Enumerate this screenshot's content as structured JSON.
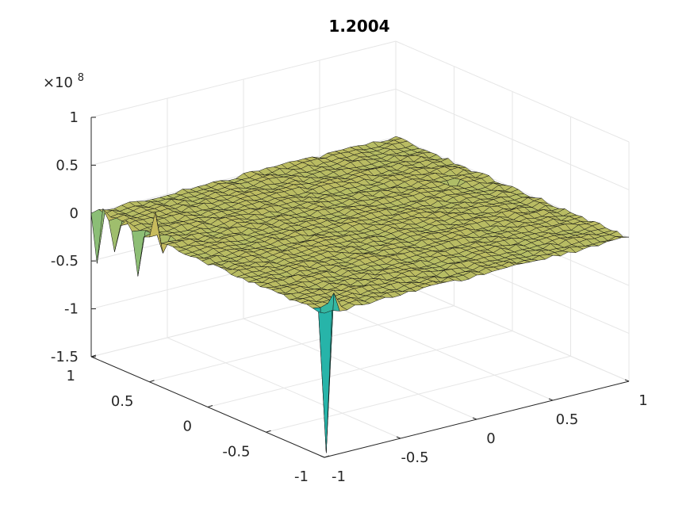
{
  "chart_data": {
    "type": "surface",
    "title": "1.2004",
    "colormap": "parula",
    "x_ticks": [
      "-1",
      "-0.5",
      "0",
      "0.5",
      "1"
    ],
    "y_ticks": [
      "-1",
      "-0.5",
      "0",
      "0.5",
      "1"
    ],
    "z_ticks": [
      "-1.5",
      "-1",
      "-0.5",
      "0",
      "0.5",
      "1"
    ],
    "z_exponent_label": "×10",
    "z_exponent_power": "8",
    "xlim": [
      -1,
      1
    ],
    "ylim": [
      -1,
      1
    ],
    "zlim": [
      -150000000.0,
      100000000.0
    ],
    "grid": true,
    "surface": {
      "grid_size": 40,
      "base_level": 0,
      "noise_amplitude": 2000000,
      "features": [
        {
          "x": -1.0,
          "y": 0.96,
          "z": -50000000
        },
        {
          "x": -1.0,
          "y": 0.9,
          "z": 10000000
        },
        {
          "x": -1.0,
          "y": 0.78,
          "z": -30000000
        },
        {
          "x": -1.0,
          "y": 0.68,
          "z": 8000000
        },
        {
          "x": -1.0,
          "y": 0.58,
          "z": -45000000
        },
        {
          "x": -1.0,
          "y": 0.45,
          "z": 30000000
        },
        {
          "x": -0.95,
          "y": 0.45,
          "z": -15000000
        },
        {
          "x": -0.97,
          "y": -0.97,
          "z": -150000000
        },
        {
          "x": -0.9,
          "y": -0.97,
          "z": 15000000
        },
        {
          "x": 0.8,
          "y": 0.25,
          "z": -12000000
        }
      ]
    }
  }
}
